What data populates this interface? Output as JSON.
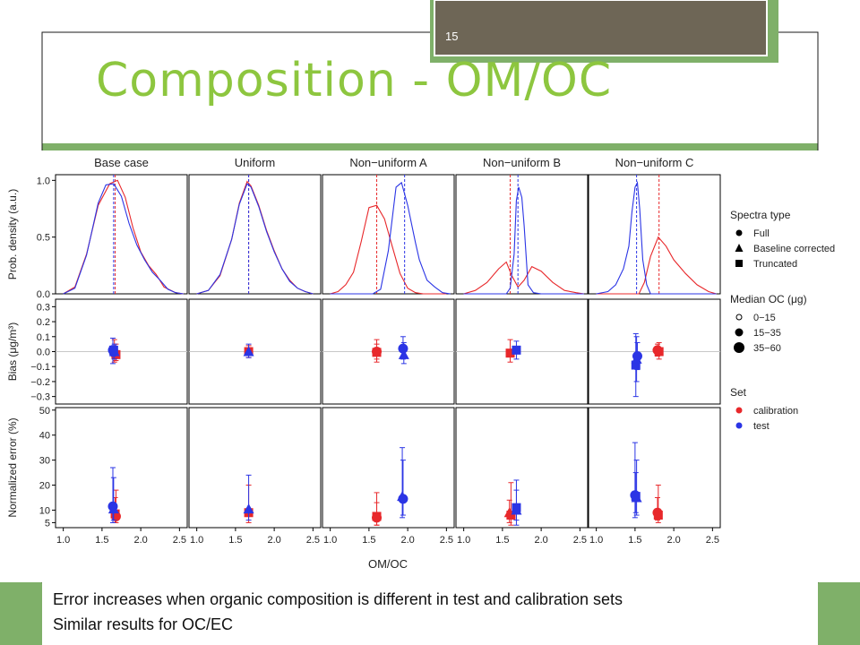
{
  "slide": {
    "number": "15",
    "title": "Composition - OM/OC",
    "caption_lines": [
      "Error increases when organic composition is different in test and calibration sets",
      "Similar results for OC/EC"
    ],
    "colors": {
      "green_accent": "#8dc63f",
      "dark_box": "#6e6656",
      "frame_green": "#7fb069"
    }
  },
  "chart_data": {
    "type": "scatter",
    "panel_titles": [
      "Base case",
      "Uniform",
      "Non−uniform A",
      "Non−uniform B",
      "Non−uniform C"
    ],
    "xlabel": "OM/OC",
    "xlim": [
      0.9,
      2.6
    ],
    "x_ticks": [
      1.0,
      1.5,
      2.0,
      2.5
    ],
    "x_tick_labels": [
      "1.0",
      "1.5",
      "2.0",
      "2.5"
    ],
    "rows": [
      {
        "ylabel": "Prob. density (a.u.)",
        "ylim": [
          0,
          1.05
        ],
        "ticks": [
          0,
          0.5,
          1.0
        ],
        "tick_labels": [
          "0.0",
          "0.5",
          "1.0"
        ],
        "zero_line": false
      },
      {
        "ylabel": "Bias (μg/m³)",
        "ylim": [
          -0.35,
          0.35
        ],
        "ticks": [
          0.3,
          0.2,
          0.1,
          0.0,
          -0.1,
          -0.2,
          -0.3
        ],
        "tick_labels": [
          "0.3",
          "0.2",
          "0.1",
          "0.0",
          "−0.1",
          "−0.2",
          "−0.3"
        ],
        "zero_line": true
      },
      {
        "ylabel": "Normalized error (%)",
        "ylim": [
          3,
          51
        ],
        "ticks": [
          50,
          40,
          30,
          20,
          10,
          5
        ],
        "tick_labels": [
          "50",
          "40",
          "30",
          "20",
          "10",
          "5"
        ],
        "zero_line": false
      }
    ],
    "series_colors": {
      "calibration": "#e8282b",
      "test": "#2b35e5"
    },
    "density": [
      {
        "calibration": [
          [
            1.0,
            0.0
          ],
          [
            1.15,
            0.06
          ],
          [
            1.3,
            0.35
          ],
          [
            1.45,
            0.78
          ],
          [
            1.6,
            0.97
          ],
          [
            1.7,
            1.0
          ],
          [
            1.8,
            0.85
          ],
          [
            1.9,
            0.58
          ],
          [
            2.0,
            0.37
          ],
          [
            2.1,
            0.25
          ],
          [
            2.2,
            0.17
          ],
          [
            2.3,
            0.06
          ],
          [
            2.45,
            0.01
          ],
          [
            2.55,
            0.0
          ]
        ],
        "test": [
          [
            1.0,
            0.0
          ],
          [
            1.15,
            0.05
          ],
          [
            1.3,
            0.34
          ],
          [
            1.45,
            0.8
          ],
          [
            1.55,
            0.96
          ],
          [
            1.65,
            0.97
          ],
          [
            1.75,
            0.86
          ],
          [
            1.85,
            0.62
          ],
          [
            1.95,
            0.43
          ],
          [
            2.05,
            0.3
          ],
          [
            2.15,
            0.19
          ],
          [
            2.25,
            0.12
          ],
          [
            2.35,
            0.04
          ],
          [
            2.45,
            0.01
          ],
          [
            2.55,
            0.0
          ]
        ],
        "median_calibration": 1.67,
        "median_test": 1.65
      },
      {
        "calibration": [
          [
            1.0,
            0.0
          ],
          [
            1.15,
            0.03
          ],
          [
            1.3,
            0.16
          ],
          [
            1.45,
            0.48
          ],
          [
            1.55,
            0.8
          ],
          [
            1.65,
            0.99
          ],
          [
            1.7,
            0.95
          ],
          [
            1.8,
            0.78
          ],
          [
            1.9,
            0.56
          ],
          [
            2.0,
            0.38
          ],
          [
            2.1,
            0.22
          ],
          [
            2.2,
            0.12
          ],
          [
            2.3,
            0.05
          ],
          [
            2.4,
            0.02
          ],
          [
            2.5,
            0.0
          ]
        ],
        "test": [
          [
            1.0,
            0.0
          ],
          [
            1.15,
            0.03
          ],
          [
            1.3,
            0.17
          ],
          [
            1.45,
            0.48
          ],
          [
            1.55,
            0.79
          ],
          [
            1.65,
            0.97
          ],
          [
            1.7,
            0.94
          ],
          [
            1.8,
            0.77
          ],
          [
            1.9,
            0.55
          ],
          [
            2.0,
            0.37
          ],
          [
            2.1,
            0.22
          ],
          [
            2.2,
            0.11
          ],
          [
            2.3,
            0.05
          ],
          [
            2.4,
            0.02
          ],
          [
            2.5,
            0.0
          ]
        ],
        "median_calibration": 1.67,
        "median_test": 1.67
      },
      {
        "calibration": [
          [
            1.0,
            0.0
          ],
          [
            1.1,
            0.02
          ],
          [
            1.2,
            0.08
          ],
          [
            1.3,
            0.19
          ],
          [
            1.4,
            0.46
          ],
          [
            1.5,
            0.76
          ],
          [
            1.6,
            0.78
          ],
          [
            1.7,
            0.66
          ],
          [
            1.8,
            0.42
          ],
          [
            1.9,
            0.18
          ],
          [
            2.0,
            0.05
          ],
          [
            2.1,
            0.01
          ],
          [
            2.2,
            0.0
          ],
          [
            2.5,
            0.0
          ]
        ],
        "test": [
          [
            1.0,
            0.0
          ],
          [
            1.55,
            0.0
          ],
          [
            1.65,
            0.04
          ],
          [
            1.75,
            0.38
          ],
          [
            1.85,
            0.94
          ],
          [
            1.92,
            0.98
          ],
          [
            2.0,
            0.78
          ],
          [
            2.1,
            0.45
          ],
          [
            2.15,
            0.3
          ],
          [
            2.25,
            0.12
          ],
          [
            2.35,
            0.06
          ],
          [
            2.45,
            0.01
          ],
          [
            2.55,
            0.0
          ]
        ],
        "median_calibration": 1.6,
        "median_test": 1.96
      },
      {
        "calibration": [
          [
            1.0,
            0.0
          ],
          [
            1.15,
            0.03
          ],
          [
            1.3,
            0.1
          ],
          [
            1.45,
            0.22
          ],
          [
            1.55,
            0.28
          ],
          [
            1.62,
            0.16
          ],
          [
            1.7,
            0.06
          ],
          [
            1.78,
            0.12
          ],
          [
            1.88,
            0.24
          ],
          [
            2.0,
            0.2
          ],
          [
            2.15,
            0.1
          ],
          [
            2.3,
            0.03
          ],
          [
            2.45,
            0.01
          ],
          [
            2.55,
            0.0
          ]
        ],
        "test": [
          [
            1.0,
            0.0
          ],
          [
            1.55,
            0.0
          ],
          [
            1.6,
            0.05
          ],
          [
            1.65,
            0.35
          ],
          [
            1.68,
            0.82
          ],
          [
            1.71,
            0.94
          ],
          [
            1.75,
            0.85
          ],
          [
            1.78,
            0.6
          ],
          [
            1.83,
            0.08
          ],
          [
            1.9,
            0.01
          ],
          [
            2.0,
            0.0
          ],
          [
            2.55,
            0.0
          ]
        ],
        "median_calibration": 1.6,
        "median_test": 1.7
      },
      {
        "calibration": [
          [
            1.0,
            0.0
          ],
          [
            1.55,
            0.0
          ],
          [
            1.62,
            0.1
          ],
          [
            1.7,
            0.33
          ],
          [
            1.8,
            0.5
          ],
          [
            1.9,
            0.42
          ],
          [
            2.0,
            0.3
          ],
          [
            2.15,
            0.18
          ],
          [
            2.3,
            0.08
          ],
          [
            2.45,
            0.02
          ],
          [
            2.55,
            0.0
          ]
        ],
        "test": [
          [
            1.0,
            0.0
          ],
          [
            1.15,
            0.02
          ],
          [
            1.25,
            0.08
          ],
          [
            1.35,
            0.22
          ],
          [
            1.42,
            0.42
          ],
          [
            1.46,
            0.72
          ],
          [
            1.5,
            0.94
          ],
          [
            1.53,
            0.98
          ],
          [
            1.56,
            0.75
          ],
          [
            1.6,
            0.3
          ],
          [
            1.65,
            0.08
          ],
          [
            1.7,
            0.0
          ],
          [
            2.55,
            0.0
          ]
        ],
        "median_calibration": 1.81,
        "median_test": 1.52
      }
    ],
    "bias": [
      {
        "calibration": [
          {
            "x": 1.66,
            "y": -0.01,
            "lo": -0.07,
            "hi": 0.08,
            "shape": "circle"
          },
          {
            "x": 1.68,
            "y": -0.02,
            "lo": -0.06,
            "hi": 0.05,
            "shape": "square"
          }
        ],
        "test": [
          {
            "x": 1.64,
            "y": 0.01,
            "lo": -0.08,
            "hi": 0.09,
            "shape": "circle"
          },
          {
            "x": 1.66,
            "y": 0.0,
            "lo": -0.05,
            "hi": 0.05,
            "shape": "triangle"
          },
          {
            "x": 1.65,
            "y": 0.01,
            "lo": -0.03,
            "hi": 0.04,
            "shape": "square"
          }
        ]
      },
      {
        "calibration": [
          {
            "x": 1.67,
            "y": 0.0,
            "lo": -0.04,
            "hi": 0.04,
            "shape": "square"
          }
        ],
        "test": [
          {
            "x": 1.67,
            "y": 0.0,
            "lo": -0.04,
            "hi": 0.05,
            "shape": "triangle"
          }
        ]
      },
      {
        "calibration": [
          {
            "x": 1.6,
            "y": -0.005,
            "lo": -0.07,
            "hi": 0.08,
            "shape": "square"
          },
          {
            "x": 1.6,
            "y": 0.0,
            "lo": -0.05,
            "hi": 0.05,
            "shape": "circle"
          }
        ],
        "test": [
          {
            "x": 1.94,
            "y": 0.02,
            "lo": -0.05,
            "hi": 0.1,
            "shape": "circle"
          },
          {
            "x": 1.95,
            "y": -0.02,
            "lo": -0.08,
            "hi": 0.06,
            "shape": "triangle"
          }
        ]
      },
      {
        "calibration": [
          {
            "x": 1.6,
            "y": -0.01,
            "lo": -0.07,
            "hi": 0.08,
            "shape": "square"
          }
        ],
        "test": [
          {
            "x": 1.68,
            "y": 0.01,
            "lo": -0.05,
            "hi": 0.07,
            "shape": "square"
          }
        ]
      },
      {
        "calibration": [
          {
            "x": 1.81,
            "y": 0.0,
            "lo": -0.05,
            "hi": 0.06,
            "shape": "square"
          },
          {
            "x": 1.79,
            "y": 0.01,
            "lo": -0.03,
            "hi": 0.05,
            "shape": "circle"
          }
        ],
        "test": [
          {
            "x": 1.51,
            "y": -0.09,
            "lo": -0.3,
            "hi": 0.12,
            "shape": "square"
          },
          {
            "x": 1.52,
            "y": -0.05,
            "lo": -0.2,
            "hi": 0.1,
            "shape": "triangle"
          },
          {
            "x": 1.53,
            "y": -0.03,
            "lo": -0.12,
            "hi": 0.06,
            "shape": "circle"
          }
        ]
      }
    ],
    "error": [
      {
        "calibration": [
          {
            "x": 1.68,
            "y": 7.5,
            "lo": 5,
            "hi": 18,
            "shape": "circle"
          },
          {
            "x": 1.67,
            "y": 8.5,
            "lo": 5,
            "hi": 15,
            "shape": "square"
          }
        ],
        "test": [
          {
            "x": 1.64,
            "y": 11.5,
            "lo": 5,
            "hi": 27,
            "shape": "circle"
          },
          {
            "x": 1.65,
            "y": 10.5,
            "lo": 6,
            "hi": 23,
            "shape": "triangle"
          }
        ]
      },
      {
        "calibration": [
          {
            "x": 1.67,
            "y": 9,
            "lo": 5,
            "hi": 20,
            "shape": "square"
          }
        ],
        "test": [
          {
            "x": 1.67,
            "y": 10.5,
            "lo": 6,
            "hi": 24,
            "shape": "triangle"
          }
        ]
      },
      {
        "calibration": [
          {
            "x": 1.6,
            "y": 7.5,
            "lo": 4,
            "hi": 17,
            "shape": "square"
          },
          {
            "x": 1.6,
            "y": 7,
            "lo": 4,
            "hi": 13,
            "shape": "circle"
          }
        ],
        "test": [
          {
            "x": 1.93,
            "y": 15.5,
            "lo": 7,
            "hi": 35,
            "shape": "triangle"
          },
          {
            "x": 1.94,
            "y": 14.5,
            "lo": 8,
            "hi": 30,
            "shape": "circle"
          }
        ]
      },
      {
        "calibration": [
          {
            "x": 1.61,
            "y": 8,
            "lo": 4,
            "hi": 21,
            "shape": "square"
          },
          {
            "x": 1.59,
            "y": 9,
            "lo": 5,
            "hi": 14,
            "shape": "triangle"
          }
        ],
        "test": [
          {
            "x": 1.68,
            "y": 11,
            "lo": 4,
            "hi": 22,
            "shape": "square"
          },
          {
            "x": 1.68,
            "y": 10,
            "lo": 6,
            "hi": 18,
            "shape": "triangle"
          }
        ]
      },
      {
        "calibration": [
          {
            "x": 1.8,
            "y": 8,
            "lo": 5,
            "hi": 20,
            "shape": "square"
          },
          {
            "x": 1.79,
            "y": 9,
            "lo": 6,
            "hi": 15,
            "shape": "circle"
          }
        ],
        "test": [
          {
            "x": 1.5,
            "y": 16,
            "lo": 7,
            "hi": 37,
            "shape": "circle"
          },
          {
            "x": 1.52,
            "y": 15,
            "lo": 8,
            "hi": 30,
            "shape": "triangle"
          },
          {
            "x": 1.51,
            "y": 15.5,
            "lo": 9,
            "hi": 25,
            "shape": "square"
          }
        ]
      }
    ],
    "legend": {
      "placement": "right",
      "groups": [
        {
          "title": "Spectra type",
          "items": [
            {
              "label": "Full",
              "symbol": "circle"
            },
            {
              "label": "Baseline corrected",
              "symbol": "triangle"
            },
            {
              "label": "Truncated",
              "symbol": "square"
            }
          ]
        },
        {
          "title": "Median OC (μg)",
          "items": [
            {
              "label": "0−15",
              "symbol": "circle-open-small"
            },
            {
              "label": "15−35",
              "symbol": "circle-medium"
            },
            {
              "label": "35−60",
              "symbol": "circle-large"
            }
          ]
        },
        {
          "title": "Set",
          "items": [
            {
              "label": "calibration",
              "symbol": "dot-red"
            },
            {
              "label": "test",
              "symbol": "dot-blue"
            }
          ]
        }
      ]
    }
  }
}
